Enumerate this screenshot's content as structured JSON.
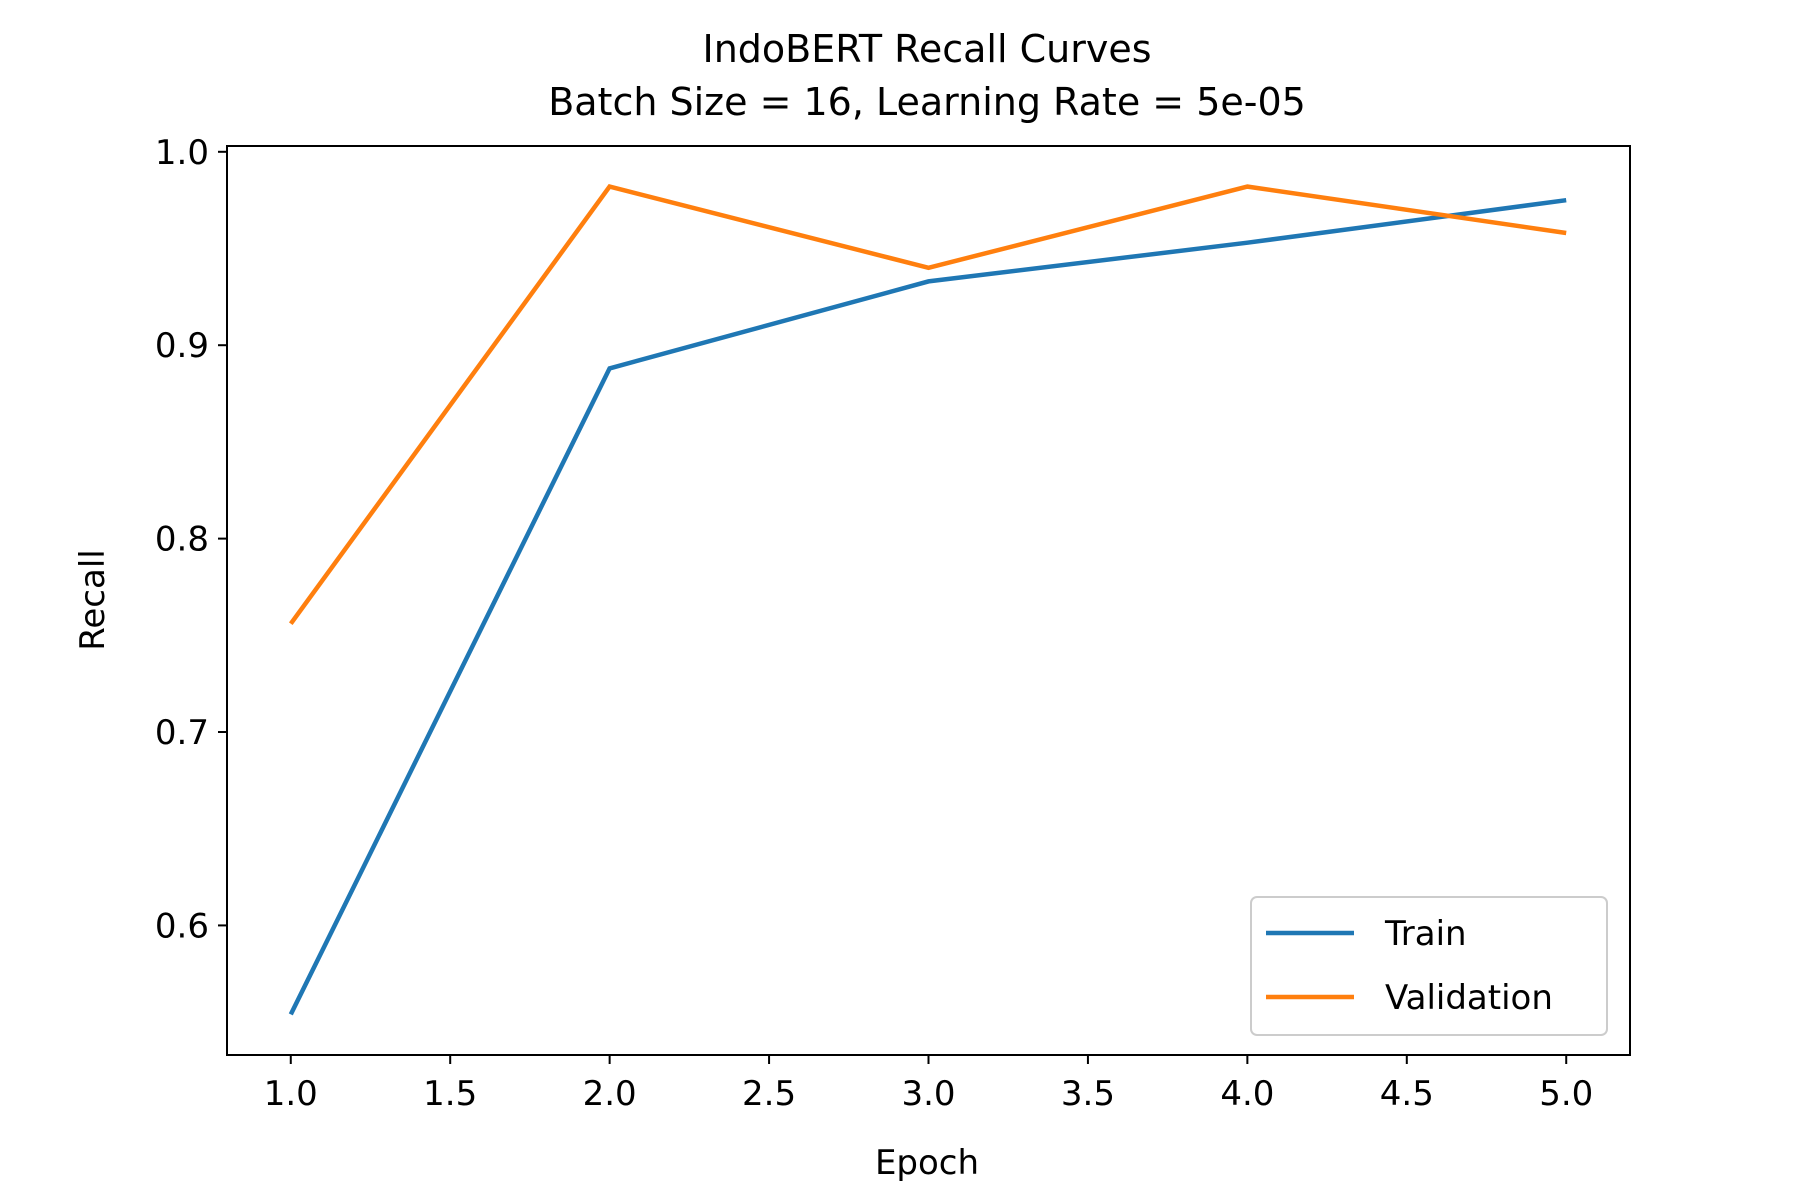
{
  "chart_data": {
    "type": "line",
    "title": "IndoBERT Recall Curves",
    "subtitle": "Batch Size = 16, Learning Rate = 5e-05",
    "xlabel": "Epoch",
    "ylabel": "Recall",
    "xlim": [
      0.8,
      5.2
    ],
    "ylim": [
      0.533,
      1.003
    ],
    "xticks": [
      1.0,
      1.5,
      2.0,
      2.5,
      3.0,
      3.5,
      4.0,
      4.5,
      5.0
    ],
    "xtick_labels": [
      "1.0",
      "1.5",
      "2.0",
      "2.5",
      "3.0",
      "3.5",
      "4.0",
      "4.5",
      "5.0"
    ],
    "yticks": [
      0.6,
      0.7,
      0.8,
      0.9,
      1.0
    ],
    "ytick_labels": [
      "0.6",
      "0.7",
      "0.8",
      "0.9",
      "1.0"
    ],
    "grid": false,
    "legend_position": "lower-right",
    "x": [
      1,
      2,
      3,
      4,
      5
    ],
    "series": [
      {
        "name": "Train",
        "color": "#1f77b4",
        "values": [
          0.554,
          0.888,
          0.933,
          0.953,
          0.975
        ]
      },
      {
        "name": "Validation",
        "color": "#ff7f0e",
        "values": [
          0.756,
          0.982,
          0.94,
          0.982,
          0.958
        ]
      }
    ]
  }
}
